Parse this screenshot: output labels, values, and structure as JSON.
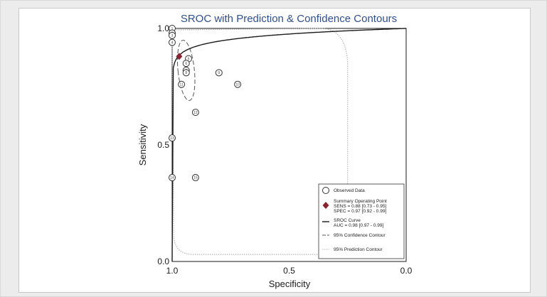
{
  "chart_data": {
    "type": "scatter",
    "title": "SROC with Prediction & Confidence Contours",
    "xlabel": "Specificity",
    "ylabel": "Sensitivity",
    "xlim": [
      1.0,
      0.0
    ],
    "ylim": [
      0.0,
      1.0
    ],
    "x_ticks": [
      "1.0",
      "0.5",
      "0.0"
    ],
    "y_ticks": [
      "0.0",
      "0.5",
      "1.0"
    ],
    "title_color": "#2f4f8f",
    "observed_points": [
      {
        "label": "1",
        "spec": 1.0,
        "sens": 1.0
      },
      {
        "label": "2",
        "spec": 1.0,
        "sens": 0.98
      },
      {
        "label": "3",
        "spec": 1.0,
        "sens": 0.97
      },
      {
        "label": "4",
        "spec": 1.0,
        "sens": 0.94
      },
      {
        "label": "5",
        "spec": 0.93,
        "sens": 0.87
      },
      {
        "label": "6",
        "spec": 0.94,
        "sens": 0.85
      },
      {
        "label": "7",
        "spec": 0.94,
        "sens": 0.82
      },
      {
        "label": "8",
        "spec": 0.94,
        "sens": 0.81
      },
      {
        "label": "9",
        "spec": 0.8,
        "sens": 0.81
      },
      {
        "label": "10",
        "spec": 0.72,
        "sens": 0.76
      },
      {
        "label": "11",
        "spec": 0.96,
        "sens": 0.76
      },
      {
        "label": "12",
        "spec": 0.9,
        "sens": 0.64
      },
      {
        "label": "13",
        "spec": 1.0,
        "sens": 0.53
      },
      {
        "label": "14",
        "spec": 1.0,
        "sens": 0.36
      },
      {
        "label": "15",
        "spec": 0.9,
        "sens": 0.36
      }
    ],
    "summary_point": {
      "spec": 0.97,
      "sens": 0.88
    },
    "sroc_curve": {
      "auc": 0.98
    },
    "confidence_contour": {
      "center_spec": 0.94,
      "center_sens": 0.82,
      "half_width_spec": 0.035,
      "half_height_sens": 0.13
    },
    "prediction_contour": {
      "spec_range": [
        0.25,
        1.0
      ],
      "sens_range": [
        0.03,
        1.0
      ]
    },
    "legend": {
      "position": "bottom-right",
      "entries": [
        {
          "key": "observed",
          "lines": [
            "Observed Data"
          ]
        },
        {
          "key": "summary",
          "lines": [
            "Summary Operating Point",
            "SENS = 0.88 [0.73 - 0.95]",
            "SPEC = 0.97 [0.92 - 0.99]"
          ]
        },
        {
          "key": "sroc",
          "lines": [
            "SROC Curve",
            "AUC = 0.98 [0.97 - 0.99]"
          ]
        },
        {
          "key": "confidence",
          "lines": [
            "95% Confidence Contour"
          ]
        },
        {
          "key": "prediction",
          "lines": [
            "95% Prediction Contour"
          ]
        }
      ]
    },
    "colors": {
      "summary": "#8b2232",
      "sroc": "#1a1a1a",
      "confidence": "#555555",
      "prediction": "#b5b5b5",
      "points": "#333333"
    }
  }
}
